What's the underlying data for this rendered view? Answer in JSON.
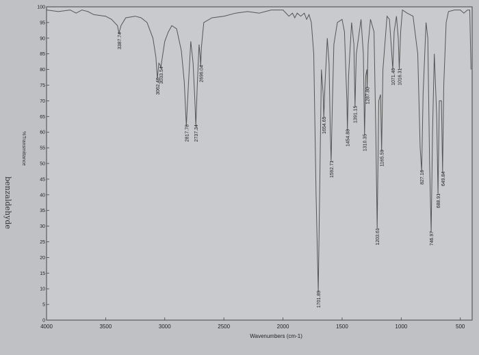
{
  "page": {
    "side_title": "benzaldehyde"
  },
  "chart_data": {
    "type": "line",
    "title": "",
    "xlabel": "Wavenumbers (cm-1)",
    "ylabel": "%Transmittance",
    "xlim": [
      4000,
      400
    ],
    "ylim": [
      0,
      100
    ],
    "x_ticks": [
      4000,
      3500,
      3000,
      2500,
      2000,
      1500,
      1000,
      500
    ],
    "y_ticks": [
      100,
      95,
      90,
      85,
      80,
      75,
      70,
      65,
      60,
      55,
      50,
      45,
      40,
      35,
      30,
      25,
      20,
      15,
      10,
      5,
      0
    ],
    "peak_labels": [
      {
        "x": 3387.74,
        "y": 91.5,
        "label": "3387.74"
      },
      {
        "x": 3062.46,
        "y": 77,
        "label": "3062.46"
      },
      {
        "x": 3033.54,
        "y": 80.5,
        "label": "3033.54"
      },
      {
        "x": 2817.78,
        "y": 62,
        "label": "2817.78"
      },
      {
        "x": 2737.34,
        "y": 62,
        "label": "2737.34"
      },
      {
        "x": 2696.04,
        "y": 81,
        "label": "2696.04"
      },
      {
        "x": 1701.89,
        "y": 9,
        "label": "1701.89"
      },
      {
        "x": 1654.65,
        "y": 64.5,
        "label": "1654.65"
      },
      {
        "x": 1592.71,
        "y": 50.5,
        "label": "1592.71"
      },
      {
        "x": 1454.88,
        "y": 60.5,
        "label": "1454.88"
      },
      {
        "x": 1391.15,
        "y": 68,
        "label": "1391.15"
      },
      {
        "x": 1310.35,
        "y": 59,
        "label": "1310.35"
      },
      {
        "x": 1287.8,
        "y": 74,
        "label": "1287.80"
      },
      {
        "x": 1203.61,
        "y": 29,
        "label": "1203.61"
      },
      {
        "x": 1165.59,
        "y": 54,
        "label": "1165.59"
      },
      {
        "x": 1071.46,
        "y": 80,
        "label": "1071.46"
      },
      {
        "x": 1016.31,
        "y": 80,
        "label": "1016.31"
      },
      {
        "x": 827.16,
        "y": 47.5,
        "label": "827.16"
      },
      {
        "x": 746.97,
        "y": 28,
        "label": "746.97"
      },
      {
        "x": 688.91,
        "y": 40,
        "label": "688.91"
      },
      {
        "x": 649.84,
        "y": 47,
        "label": "649.84"
      }
    ],
    "series": [
      {
        "color": "#555555",
        "points": [
          [
            4000,
            99
          ],
          [
            3900,
            98.5
          ],
          [
            3800,
            99
          ],
          [
            3750,
            98
          ],
          [
            3700,
            99
          ],
          [
            3650,
            98.5
          ],
          [
            3600,
            97.5
          ],
          [
            3500,
            97
          ],
          [
            3450,
            96
          ],
          [
            3400,
            94
          ],
          [
            3387.74,
            91.5
          ],
          [
            3370,
            94
          ],
          [
            3330,
            96.5
          ],
          [
            3250,
            97
          ],
          [
            3200,
            96.5
          ],
          [
            3150,
            95
          ],
          [
            3100,
            90
          ],
          [
            3075,
            84
          ],
          [
            3062.46,
            77
          ],
          [
            3050,
            82
          ],
          [
            3040,
            81.5
          ],
          [
            3033.54,
            80.5
          ],
          [
            3020,
            84
          ],
          [
            3000,
            89
          ],
          [
            2970,
            92
          ],
          [
            2940,
            94
          ],
          [
            2900,
            93
          ],
          [
            2860,
            86
          ],
          [
            2835,
            76
          ],
          [
            2817.78,
            62
          ],
          [
            2800,
            75
          ],
          [
            2780,
            89
          ],
          [
            2760,
            82
          ],
          [
            2745,
            70
          ],
          [
            2737.34,
            62
          ],
          [
            2725,
            75
          ],
          [
            2710,
            88
          ],
          [
            2700,
            84
          ],
          [
            2696.04,
            81
          ],
          [
            2690,
            87
          ],
          [
            2670,
            95
          ],
          [
            2600,
            96.5
          ],
          [
            2500,
            97
          ],
          [
            2400,
            98
          ],
          [
            2300,
            98.5
          ],
          [
            2200,
            98
          ],
          [
            2100,
            99
          ],
          [
            2000,
            99
          ],
          [
            1950,
            97
          ],
          [
            1920,
            98
          ],
          [
            1900,
            96.5
          ],
          [
            1880,
            98
          ],
          [
            1850,
            97
          ],
          [
            1820,
            98
          ],
          [
            1800,
            96
          ],
          [
            1780,
            97.5
          ],
          [
            1760,
            95
          ],
          [
            1740,
            85
          ],
          [
            1720,
            40
          ],
          [
            1701.89,
            9
          ],
          [
            1690,
            40
          ],
          [
            1675,
            80
          ],
          [
            1660,
            72
          ],
          [
            1654.65,
            64.5
          ],
          [
            1645,
            75
          ],
          [
            1625,
            90
          ],
          [
            1610,
            82
          ],
          [
            1600,
            60
          ],
          [
            1592.71,
            50.5
          ],
          [
            1585,
            65
          ],
          [
            1570,
            88
          ],
          [
            1540,
            95
          ],
          [
            1500,
            96
          ],
          [
            1480,
            92
          ],
          [
            1460,
            70
          ],
          [
            1454.88,
            60.5
          ],
          [
            1445,
            78
          ],
          [
            1420,
            95
          ],
          [
            1400,
            88
          ],
          [
            1391.15,
            68
          ],
          [
            1380,
            85
          ],
          [
            1340,
            96
          ],
          [
            1320,
            85
          ],
          [
            1310.35,
            59
          ],
          [
            1300,
            78
          ],
          [
            1290,
            80
          ],
          [
            1287.8,
            74
          ],
          [
            1280,
            88
          ],
          [
            1260,
            96
          ],
          [
            1230,
            92
          ],
          [
            1215,
            60
          ],
          [
            1203.61,
            29
          ],
          [
            1190,
            70
          ],
          [
            1175,
            72
          ],
          [
            1165.59,
            54
          ],
          [
            1155,
            80
          ],
          [
            1120,
            97
          ],
          [
            1100,
            96
          ],
          [
            1085,
            88
          ],
          [
            1071.46,
            80
          ],
          [
            1060,
            92
          ],
          [
            1040,
            97
          ],
          [
            1025,
            90
          ],
          [
            1016.31,
            80
          ],
          [
            1005,
            92
          ],
          [
            990,
            99
          ],
          [
            950,
            98
          ],
          [
            900,
            97
          ],
          [
            860,
            85
          ],
          [
            840,
            55
          ],
          [
            827.16,
            47.5
          ],
          [
            815,
            72
          ],
          [
            790,
            95
          ],
          [
            775,
            90
          ],
          [
            760,
            50
          ],
          [
            746.97,
            28
          ],
          [
            735,
            60
          ],
          [
            720,
            85
          ],
          [
            700,
            65
          ],
          [
            688.91,
            40
          ],
          [
            678,
            70
          ],
          [
            660,
            70
          ],
          [
            649.84,
            47
          ],
          [
            640,
            75
          ],
          [
            620,
            95
          ],
          [
            600,
            98.5
          ],
          [
            550,
            99
          ],
          [
            500,
            99
          ],
          [
            470,
            98
          ],
          [
            440,
            99
          ],
          [
            420,
            99
          ],
          [
            410,
            80
          ]
        ]
      }
    ]
  }
}
